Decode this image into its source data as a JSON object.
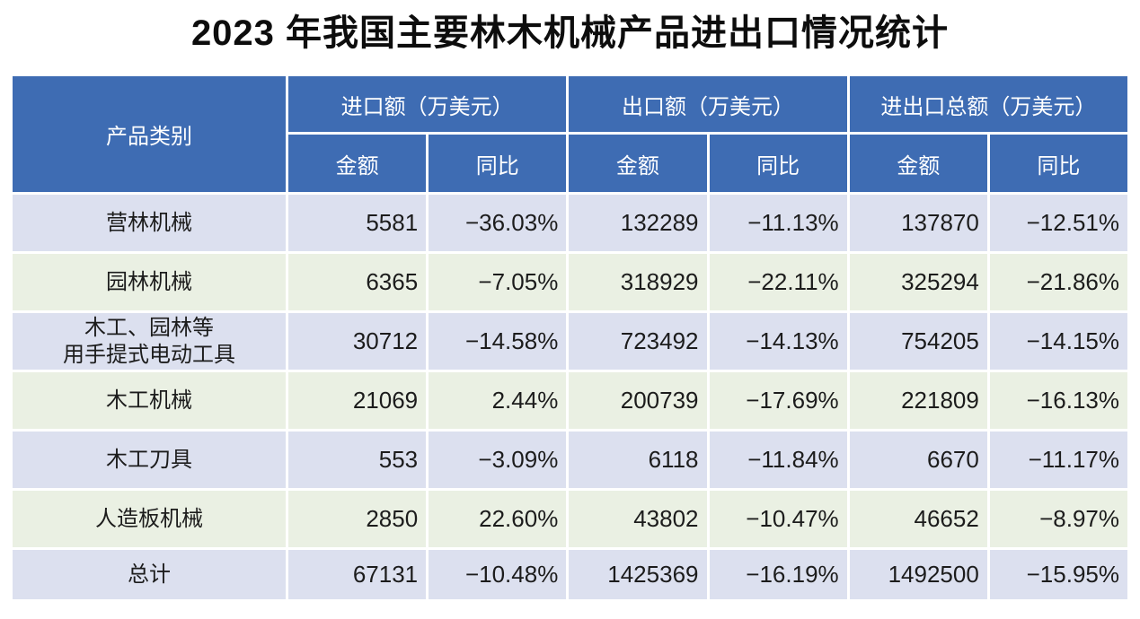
{
  "title": "2023 年我国主要林木机械产品进出口情况统计",
  "colors": {
    "header_blue": "#3e6cb3",
    "row_alt1": "#dce0ef",
    "row_alt2": "#eaf0e3"
  },
  "table": {
    "product_header": "产品类别",
    "group_import": "进口额（万美元）",
    "group_export": "出口额（万美元）",
    "group_total": "进出口总额（万美元）",
    "sub_amount": "金额",
    "sub_yoy": "同比",
    "rows": [
      {
        "product": "营林机械",
        "import_amount": "5581",
        "import_yoy": "−36.03%",
        "export_amount": "132289",
        "export_yoy": "−11.13%",
        "total_amount": "137870",
        "total_yoy": "−12.51%"
      },
      {
        "product": "园林机械",
        "import_amount": "6365",
        "import_yoy": "−7.05%",
        "export_amount": "318929",
        "export_yoy": "−22.11%",
        "total_amount": "325294",
        "total_yoy": "−21.86%"
      },
      {
        "product": "木工、园林等\n用手提式电动工具",
        "import_amount": "30712",
        "import_yoy": "−14.58%",
        "export_amount": "723492",
        "export_yoy": "−14.13%",
        "total_amount": "754205",
        "total_yoy": "−14.15%"
      },
      {
        "product": "木工机械",
        "import_amount": "21069",
        "import_yoy": "2.44%",
        "export_amount": "200739",
        "export_yoy": "−17.69%",
        "total_amount": "221809",
        "total_yoy": "−16.13%"
      },
      {
        "product": "木工刀具",
        "import_amount": "553",
        "import_yoy": "−3.09%",
        "export_amount": "6118",
        "export_yoy": "−11.84%",
        "total_amount": "6670",
        "total_yoy": "−11.17%"
      },
      {
        "product": "人造板机械",
        "import_amount": "2850",
        "import_yoy": "22.60%",
        "export_amount": "43802",
        "export_yoy": "−10.47%",
        "total_amount": "46652",
        "total_yoy": "−8.97%"
      },
      {
        "product": "总计",
        "import_amount": "67131",
        "import_yoy": "−10.48%",
        "export_amount": "1425369",
        "export_yoy": "−16.19%",
        "total_amount": "1492500",
        "total_yoy": "−15.95%"
      }
    ]
  },
  "chart_data": {
    "type": "table",
    "title": "2023 年我国主要林木机械产品进出口情况统计",
    "unit": "万美元",
    "columns": [
      "产品类别",
      "进口额 金额",
      "进口额 同比",
      "出口额 金额",
      "出口额 同比",
      "进出口总额 金额",
      "进出口总额 同比"
    ],
    "rows": [
      [
        "营林机械",
        5581,
        -36.03,
        132289,
        -11.13,
        137870,
        -12.51
      ],
      [
        "园林机械",
        6365,
        -7.05,
        318929,
        -22.11,
        325294,
        -21.86
      ],
      [
        "木工、园林等用手提式电动工具",
        30712,
        -14.58,
        723492,
        -14.13,
        754205,
        -14.15
      ],
      [
        "木工机械",
        21069,
        2.44,
        200739,
        -17.69,
        221809,
        -16.13
      ],
      [
        "木工刀具",
        553,
        -3.09,
        6118,
        -11.84,
        6670,
        -11.17
      ],
      [
        "人造板机械",
        2850,
        22.6,
        43802,
        -10.47,
        46652,
        -8.97
      ],
      [
        "总计",
        67131,
        -10.48,
        1425369,
        -16.19,
        1492500,
        -15.95
      ]
    ]
  }
}
